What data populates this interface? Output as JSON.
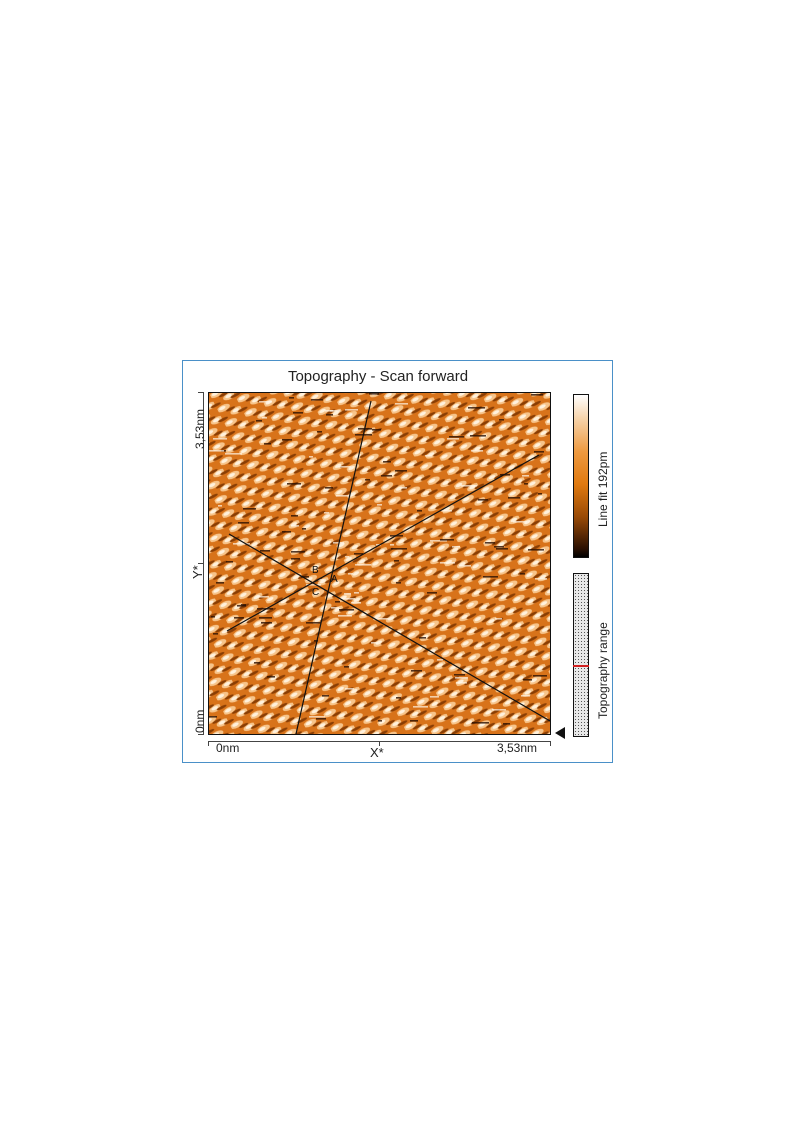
{
  "figure": {
    "title": "Topography - Scan forward",
    "x_axis": {
      "label": "X*",
      "min_label": "0nm",
      "max_label": "3,53nm"
    },
    "y_axis": {
      "label": "Y*",
      "min_label": "0nm",
      "max_label": "3,53nm"
    },
    "colorbar_label": "Line fit 192pm",
    "range_label": "Topography range",
    "points": {
      "a": "A",
      "b": "B",
      "c": "C"
    },
    "colors": {
      "low": "#000000",
      "mid": "#e07a10",
      "high": "#ffffff",
      "frame": "#4a90c8",
      "range_marker": "#d02020"
    }
  }
}
